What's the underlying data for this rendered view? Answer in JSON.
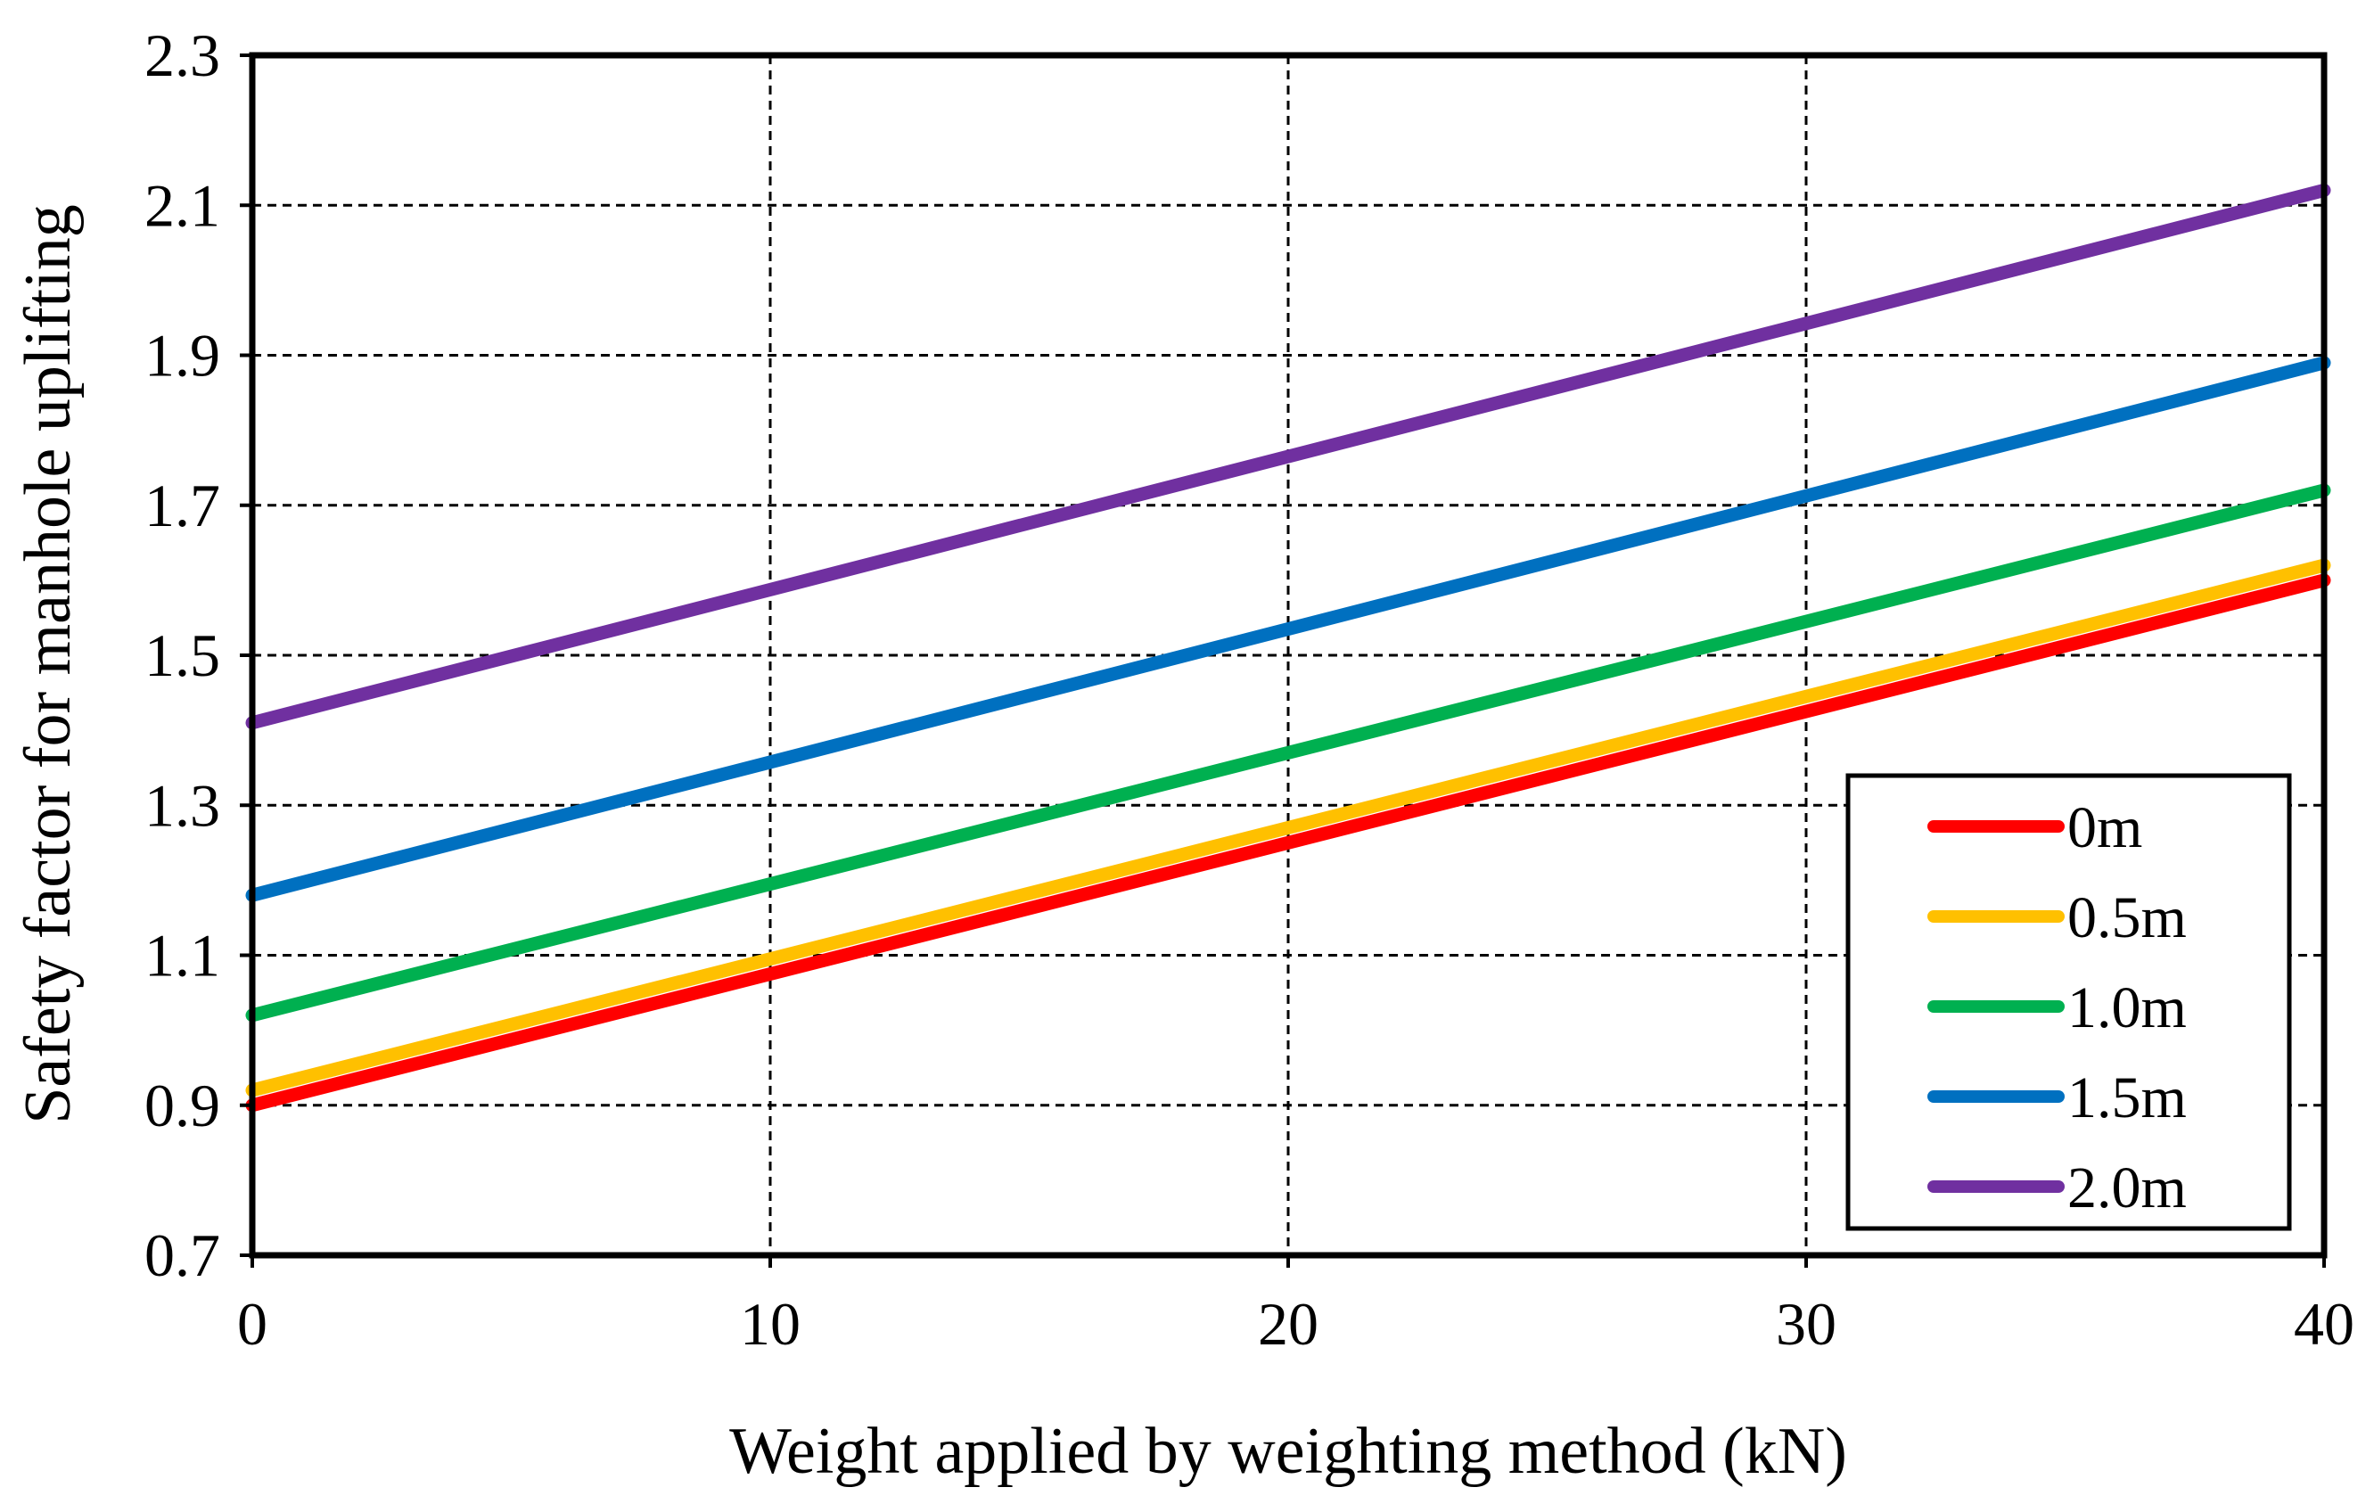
{
  "chart_data": {
    "type": "line",
    "title": "",
    "xlabel": "Weight applied by weighting method (kN)",
    "ylabel": "Safety factor for manhole uplifting",
    "xlim": [
      0,
      40
    ],
    "ylim": [
      0.7,
      2.3
    ],
    "x_ticks": [
      0,
      10,
      20,
      30,
      40
    ],
    "x_tick_labels": [
      "0",
      "10",
      "20",
      "30",
      "40"
    ],
    "y_ticks": [
      0.7,
      0.9,
      1.1,
      1.3,
      1.5,
      1.7,
      1.9,
      2.1,
      2.3
    ],
    "y_tick_labels": [
      "0.7",
      "0.9",
      "1.1",
      "1.3",
      "1.5",
      "1.7",
      "1.9",
      "2.1",
      "2.3"
    ],
    "grid": true,
    "legend_position": "bottom-right",
    "x": [
      0,
      40
    ],
    "series": [
      {
        "name": "0m",
        "color": "#ff0000",
        "values": [
          0.9,
          1.6
        ]
      },
      {
        "name": "0.5m",
        "color": "#ffc000",
        "values": [
          0.92,
          1.62
        ]
      },
      {
        "name": "1.0m",
        "color": "#00b050",
        "values": [
          1.02,
          1.72
        ]
      },
      {
        "name": "1.5m",
        "color": "#0070c0",
        "values": [
          1.18,
          1.89
        ]
      },
      {
        "name": "2.0m",
        "color": "#7030a0",
        "values": [
          1.41,
          2.12
        ]
      }
    ]
  }
}
